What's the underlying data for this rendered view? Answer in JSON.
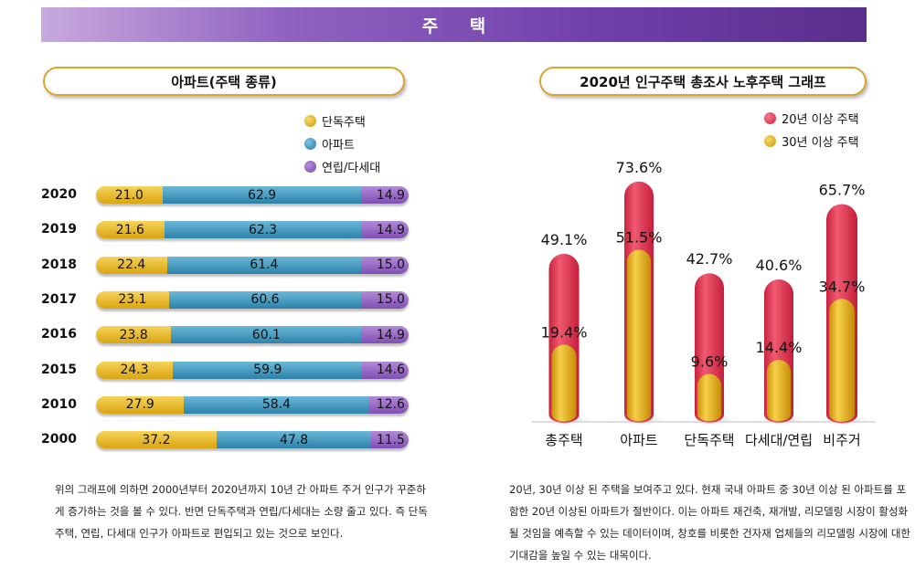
{
  "banner_title": "주 택",
  "left_panel": {
    "title": "아파트(주택 종류)",
    "legend": [
      "단독주택",
      "아파트",
      "연립/다세대"
    ],
    "legend_colors": [
      "#e2b022",
      "#3a8fb7",
      "#8a5ab8"
    ],
    "description": "위의 그래프에 의하면 2000년부터 2020년까지 10년 간 아파트 주거 인구가 꾸준하게 증가하는 것을 볼 수 있다. 반면 단독주택과 연립/다세대는 소량 줄고 있다. 즉 단독주택, 연립, 다세대 인구가 아파트로 편입되고 있는 것으로 보인다."
  },
  "right_panel": {
    "title": "2020년 인구주택 총조사 노후주택 그래프",
    "legend": [
      "20년 이상 주택",
      "30년 이상 주택"
    ],
    "legend_colors": [
      "#e23a55",
      "#e2b022"
    ],
    "description": "20년, 30년 이상 된 주택을 보여주고 있다. 현재 국내 아파트 중 30년 이상 된 아파트를 포함한 20년 이상된 아파트가 절반이다. 이는 아파트 재건축, 재개발, 리모델링 시장이 활성화될 것임을 예측할 수 있는 데이터이며, 창호를 비롯한 건자재 업체들의 리모델링 시장에 대한 기대감을 높일 수 있는 대목이다."
  },
  "chart_data": [
    {
      "type": "bar",
      "orientation": "horizontal",
      "stacked": true,
      "title": "아파트(주택 종류)",
      "categories": [
        "2020",
        "2019",
        "2018",
        "2017",
        "2016",
        "2015",
        "2010",
        "2000"
      ],
      "series": [
        {
          "name": "단독주택",
          "values": [
            21.0,
            21.6,
            22.4,
            23.1,
            23.8,
            24.3,
            27.9,
            37.2
          ]
        },
        {
          "name": "아파트",
          "values": [
            62.9,
            62.3,
            61.4,
            60.6,
            60.1,
            59.9,
            58.4,
            47.8
          ]
        },
        {
          "name": "연립/다세대",
          "values": [
            14.9,
            14.9,
            15.0,
            15.0,
            14.9,
            14.6,
            12.6,
            11.5
          ]
        }
      ],
      "labels": [
        [
          "21.0",
          "62.9",
          "14.9"
        ],
        [
          "21.6",
          "62.3",
          "14.9"
        ],
        [
          "22.4",
          "61.4",
          "15.0"
        ],
        [
          "23.1",
          "60.6",
          "15.0"
        ],
        [
          "23.8",
          "60.1",
          "14.9"
        ],
        [
          "24.3",
          "59.9",
          "14.6"
        ],
        [
          "27.9",
          "58.4",
          "12.6"
        ],
        [
          "37.2",
          "47.8",
          "11.5"
        ]
      ],
      "legend_position": "top-right"
    },
    {
      "type": "bar",
      "title": "2020년 인구주택 총조사 노후주택 그래프",
      "categories": [
        "총주택",
        "아파트",
        "단독주택",
        "다세대/연립",
        "비주거"
      ],
      "series": [
        {
          "name": "20년 이상 주택",
          "values": [
            49.1,
            73.6,
            42.7,
            40.6,
            65.7
          ],
          "labels": [
            "49.1%",
            "73.6%",
            "42.7%",
            "40.6%",
            "65.7%"
          ]
        },
        {
          "name": "30년 이상 주택",
          "values": [
            19.4,
            51.5,
            9.6,
            14.4,
            34.7
          ],
          "labels": [
            "19.4%",
            "51.5%",
            "9.6%",
            "14.4%",
            "34.7%"
          ]
        }
      ],
      "ylim": [
        0,
        80
      ],
      "legend_position": "top-right"
    }
  ]
}
